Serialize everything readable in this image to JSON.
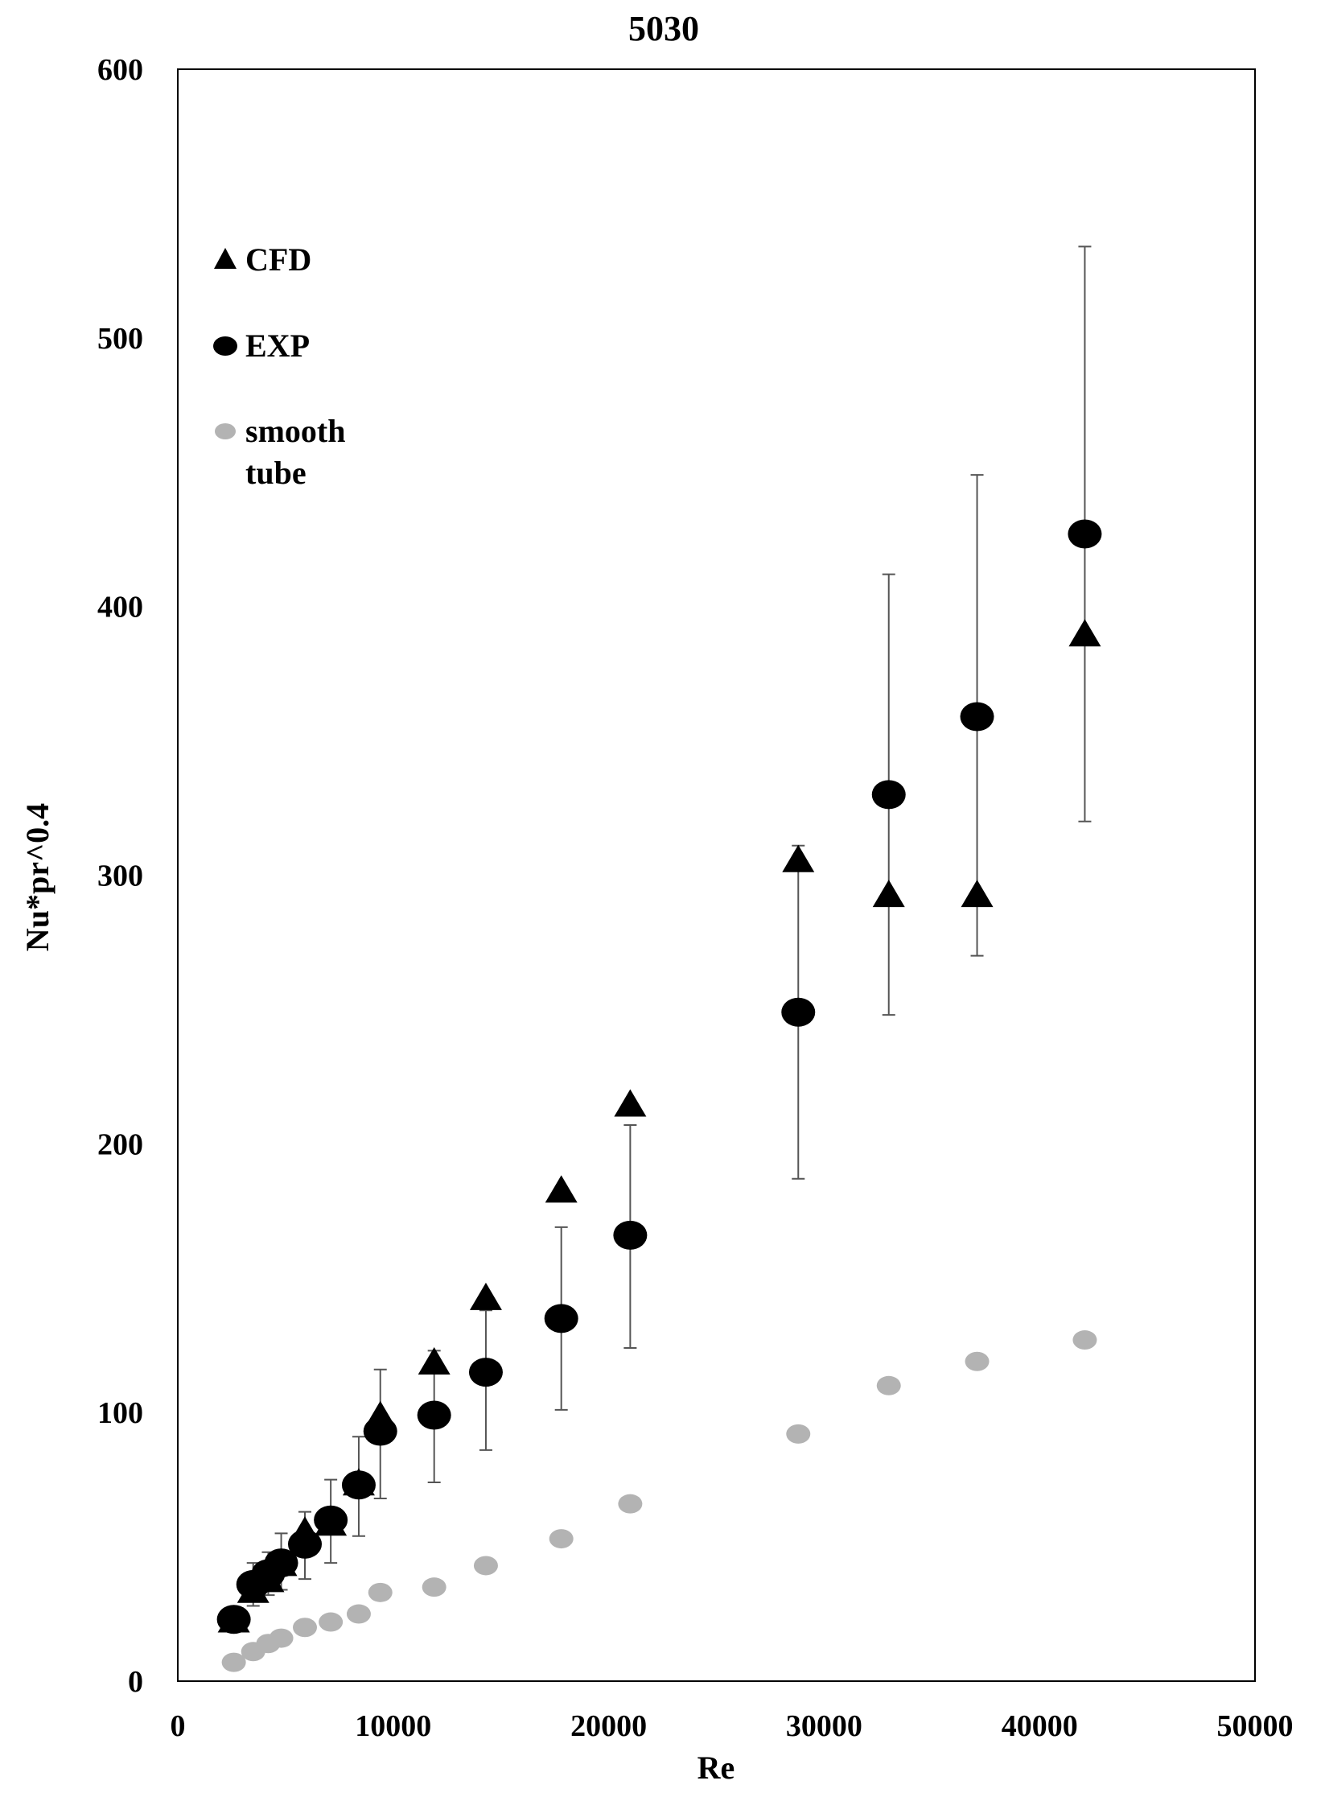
{
  "chart_data": {
    "type": "scatter",
    "title": "5030",
    "xlabel": "Re",
    "ylabel": "Nu*pr^0.4",
    "xlim": [
      0,
      50000
    ],
    "ylim": [
      0,
      600
    ],
    "xticks": [
      "0",
      "10000",
      "20000",
      "30000",
      "40000",
      "50000"
    ],
    "yticks": [
      "0",
      "100",
      "200",
      "300",
      "400",
      "500",
      "600"
    ],
    "grid": false,
    "legend_position": "top-left",
    "series": [
      {
        "name": "CFD",
        "marker": "triangle",
        "color": "#000000",
        "x": [
          2600,
          3500,
          4200,
          4800,
          5900,
          7100,
          8400,
          9400,
          11900,
          14300,
          17800,
          21000,
          28800,
          33000,
          37100,
          42100
        ],
        "y": [
          22,
          33,
          37,
          43,
          55,
          58,
          73,
          98,
          118,
          142,
          182,
          214,
          305,
          292,
          292,
          389
        ]
      },
      {
        "name": "EXP",
        "marker": "circle",
        "color": "#000000",
        "x": [
          2600,
          3500,
          4200,
          4800,
          5900,
          7100,
          8400,
          9400,
          11900,
          14300,
          17800,
          21000,
          28800,
          33000,
          37100,
          42100
        ],
        "y": [
          23,
          36,
          40,
          44,
          51,
          60,
          73,
          93,
          99,
          115,
          135,
          166,
          249,
          330,
          359,
          427
        ],
        "error_low": [
          20,
          28,
          32,
          34,
          38,
          44,
          54,
          68,
          74,
          86,
          101,
          124,
          187,
          248,
          270,
          320
        ],
        "error_high": [
          27,
          44,
          48,
          55,
          63,
          75,
          91,
          116,
          123,
          138,
          169,
          207,
          311,
          412,
          449,
          534
        ]
      },
      {
        "name": "smooth tube",
        "marker": "circle",
        "color": "#b3b3b3",
        "x": [
          2600,
          3500,
          4200,
          4800,
          5900,
          7100,
          8400,
          9400,
          11900,
          14300,
          17800,
          21000,
          28800,
          33000,
          37100,
          42100
        ],
        "y": [
          7,
          11,
          14,
          16,
          20,
          22,
          25,
          33,
          35,
          43,
          53,
          66,
          92,
          110,
          119,
          127
        ]
      }
    ]
  }
}
